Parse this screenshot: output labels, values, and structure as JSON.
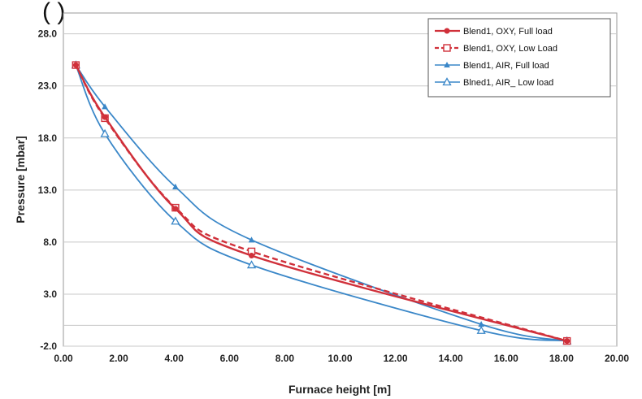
{
  "header": {
    "clipped_text": "(                                                                      )"
  },
  "chart_data": {
    "type": "line",
    "title": "",
    "xlabel": "Furnace height [m]",
    "ylabel": "Pressure [mbar]",
    "xlim": [
      0,
      20
    ],
    "ylim": [
      -2,
      30
    ],
    "x_ticks": [
      0,
      2,
      4,
      6,
      8,
      10,
      12,
      14,
      16,
      18,
      20
    ],
    "x_tick_labels": [
      "0.00",
      "2.00",
      "4.00",
      "6.00",
      "8.00",
      "10.00",
      "12.00",
      "14.00",
      "16.00",
      "18.00",
      "20.00"
    ],
    "y_ticks": [
      -2,
      3,
      8,
      13,
      18,
      23,
      28
    ],
    "y_tick_labels": [
      "-2.0",
      "3.0",
      "8.0",
      "13.0",
      "18.0",
      "23.0",
      "28.0"
    ],
    "grid": true,
    "legend_position": "top-right",
    "series": [
      {
        "name": "Blend1, OXY, Full load",
        "color": "#d0303a",
        "marker": "filled-circle",
        "dash": "solid",
        "x": [
          0.45,
          1.5,
          4.05,
          6.8,
          18.2
        ],
        "y": [
          25.0,
          20.0,
          11.2,
          6.7,
          -1.5
        ]
      },
      {
        "name": "Blend1, OXY, Low Load",
        "color": "#d0303a",
        "marker": "open-square",
        "dash": "dashed",
        "x": [
          0.45,
          1.5,
          4.05,
          6.8,
          18.2
        ],
        "y": [
          25.0,
          19.9,
          11.3,
          7.1,
          -1.5
        ]
      },
      {
        "name": "Blend1, AIR, Full load",
        "color": "#3a87c8",
        "marker": "filled-triangle",
        "dash": "solid",
        "x": [
          0.45,
          1.5,
          4.05,
          6.8,
          15.1,
          18.2
        ],
        "y": [
          25.0,
          21.0,
          13.3,
          8.2,
          0.1,
          -1.5
        ]
      },
      {
        "name": "Blned1, AIR_ Low load",
        "color": "#3a87c8",
        "marker": "open-triangle",
        "dash": "solid",
        "x": [
          0.45,
          1.5,
          4.05,
          6.8,
          15.1,
          18.2
        ],
        "y": [
          25.0,
          18.4,
          10.0,
          5.8,
          -0.5,
          -1.5
        ]
      }
    ]
  }
}
